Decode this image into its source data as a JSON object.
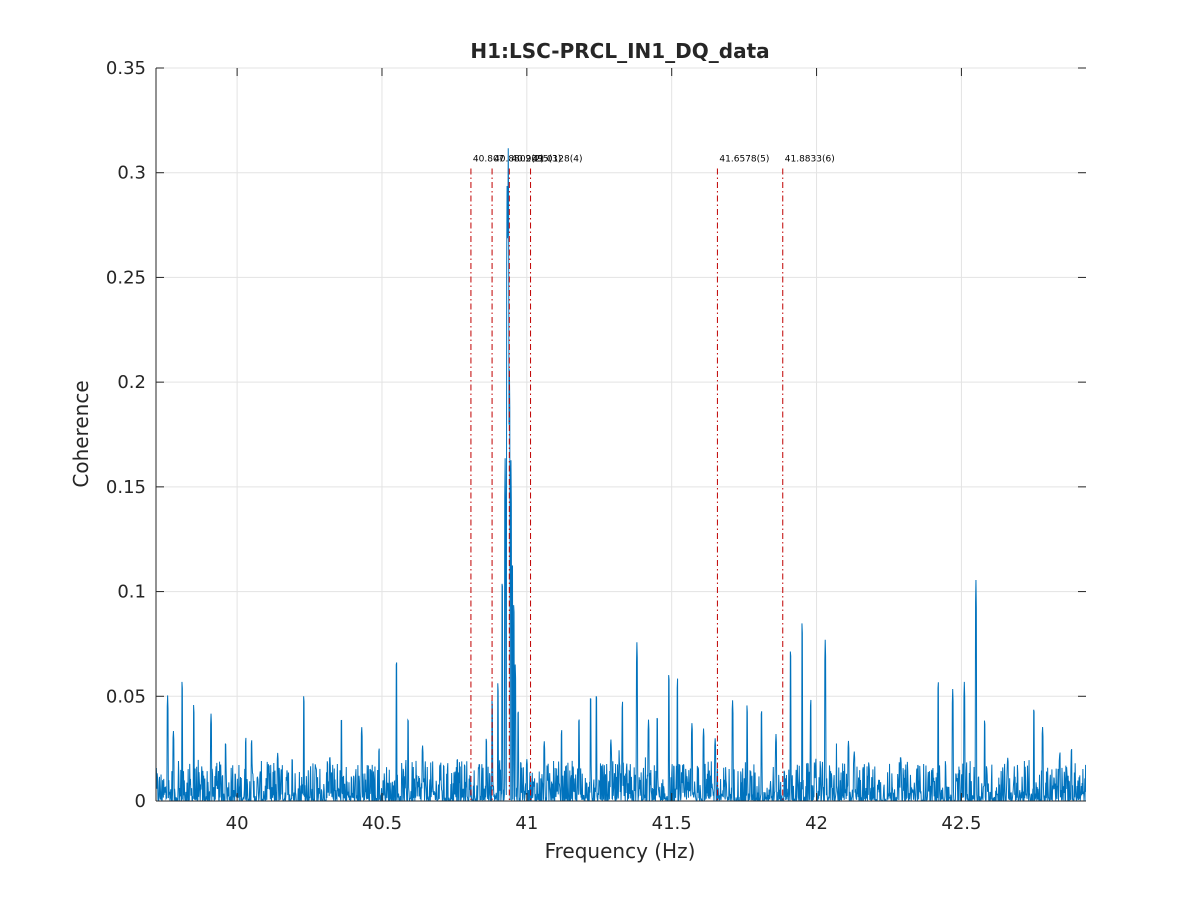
{
  "chart_data": {
    "type": "line",
    "title": "H1:LSC-PRCL_IN1_DQ_data",
    "xlabel": "Frequency (Hz)",
    "ylabel": "Coherence",
    "xlim": [
      39.72,
      42.93
    ],
    "ylim": [
      0,
      0.35
    ],
    "x_ticks": [
      40,
      40.5,
      41,
      41.5,
      42,
      42.5
    ],
    "x_tick_labels": [
      "40",
      "40.5",
      "41",
      "41.5",
      "42",
      "42.5"
    ],
    "y_ticks": [
      0,
      0.05,
      0.1,
      0.15,
      0.2,
      0.25,
      0.3,
      0.35
    ],
    "y_tick_labels": [
      "0",
      "0.05",
      "0.1",
      "0.15",
      "0.2",
      "0.25",
      "0.3",
      "0.35"
    ],
    "grid": true,
    "series": [
      {
        "color": "#0072bd",
        "noise_floor": 0.006,
        "peaks": [
          {
            "x": 39.76,
            "y": 0.051
          },
          {
            "x": 39.78,
            "y": 0.034
          },
          {
            "x": 39.81,
            "y": 0.059
          },
          {
            "x": 39.85,
            "y": 0.047
          },
          {
            "x": 39.91,
            "y": 0.042
          },
          {
            "x": 39.96,
            "y": 0.029
          },
          {
            "x": 40.03,
            "y": 0.031
          },
          {
            "x": 40.05,
            "y": 0.03
          },
          {
            "x": 40.14,
            "y": 0.023
          },
          {
            "x": 40.19,
            "y": 0.021
          },
          {
            "x": 40.23,
            "y": 0.052
          },
          {
            "x": 40.27,
            "y": 0.018
          },
          {
            "x": 40.32,
            "y": 0.022
          },
          {
            "x": 40.36,
            "y": 0.041
          },
          {
            "x": 40.43,
            "y": 0.036
          },
          {
            "x": 40.49,
            "y": 0.026
          },
          {
            "x": 40.55,
            "y": 0.07
          },
          {
            "x": 40.59,
            "y": 0.041
          },
          {
            "x": 40.64,
            "y": 0.027
          },
          {
            "x": 40.7,
            "y": 0.018
          },
          {
            "x": 40.76,
            "y": 0.021
          },
          {
            "x": 40.86,
            "y": 0.031
          },
          {
            "x": 40.88,
            "y": 0.05
          },
          {
            "x": 40.9,
            "y": 0.058
          },
          {
            "x": 40.915,
            "y": 0.11
          },
          {
            "x": 40.925,
            "y": 0.165
          },
          {
            "x": 40.932,
            "y": 0.3
          },
          {
            "x": 40.936,
            "y": 0.318
          },
          {
            "x": 40.94,
            "y": 0.21
          },
          {
            "x": 40.945,
            "y": 0.165
          },
          {
            "x": 40.95,
            "y": 0.118
          },
          {
            "x": 40.955,
            "y": 0.098
          },
          {
            "x": 40.96,
            "y": 0.066
          },
          {
            "x": 40.97,
            "y": 0.045
          },
          {
            "x": 41.0,
            "y": 0.02
          },
          {
            "x": 41.06,
            "y": 0.029
          },
          {
            "x": 41.12,
            "y": 0.035
          },
          {
            "x": 41.18,
            "y": 0.041
          },
          {
            "x": 41.22,
            "y": 0.052
          },
          {
            "x": 41.24,
            "y": 0.053
          },
          {
            "x": 41.29,
            "y": 0.03
          },
          {
            "x": 41.33,
            "y": 0.049
          },
          {
            "x": 41.38,
            "y": 0.077
          },
          {
            "x": 41.42,
            "y": 0.039
          },
          {
            "x": 41.45,
            "y": 0.042
          },
          {
            "x": 41.49,
            "y": 0.063
          },
          {
            "x": 41.52,
            "y": 0.06
          },
          {
            "x": 41.57,
            "y": 0.038
          },
          {
            "x": 41.61,
            "y": 0.035
          },
          {
            "x": 41.65,
            "y": 0.03
          },
          {
            "x": 41.71,
            "y": 0.049
          },
          {
            "x": 41.76,
            "y": 0.047
          },
          {
            "x": 41.81,
            "y": 0.045
          },
          {
            "x": 41.86,
            "y": 0.032
          },
          {
            "x": 41.91,
            "y": 0.075
          },
          {
            "x": 41.95,
            "y": 0.088
          },
          {
            "x": 41.98,
            "y": 0.05
          },
          {
            "x": 42.03,
            "y": 0.078
          },
          {
            "x": 42.11,
            "y": 0.029
          },
          {
            "x": 42.13,
            "y": 0.024
          },
          {
            "x": 42.18,
            "y": 0.019
          },
          {
            "x": 42.29,
            "y": 0.022
          },
          {
            "x": 42.35,
            "y": 0.018
          },
          {
            "x": 42.42,
            "y": 0.059
          },
          {
            "x": 42.47,
            "y": 0.054
          },
          {
            "x": 42.51,
            "y": 0.057
          },
          {
            "x": 42.55,
            "y": 0.107
          },
          {
            "x": 42.58,
            "y": 0.04
          },
          {
            "x": 42.66,
            "y": 0.021
          },
          {
            "x": 42.75,
            "y": 0.046
          },
          {
            "x": 42.78,
            "y": 0.036
          },
          {
            "x": 42.84,
            "y": 0.024
          },
          {
            "x": 42.88,
            "y": 0.026
          }
        ]
      }
    ],
    "markers": [
      {
        "x": 40.807,
        "label": "40.807"
      },
      {
        "x": 40.88,
        "label": "40.8802(2)"
      },
      {
        "x": 40.9395,
        "label": "40.9395(3)"
      },
      {
        "x": 41.0128,
        "label": "41.0128(4)"
      },
      {
        "x": 41.6578,
        "label": "41.6578(5)"
      },
      {
        "x": 41.8833,
        "label": "41.8833(6)"
      }
    ],
    "marker_color": "#c00000"
  }
}
